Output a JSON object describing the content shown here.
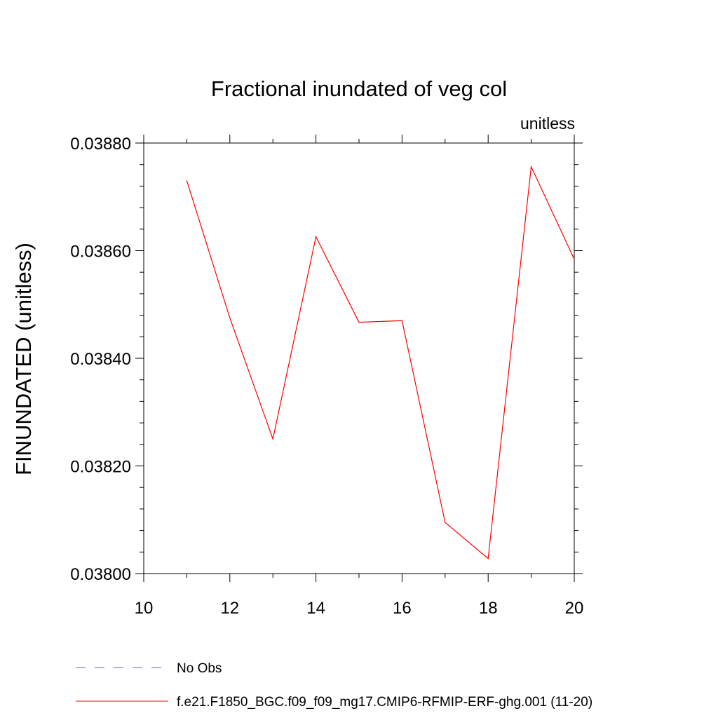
{
  "chart_data": {
    "type": "line",
    "title": "Fractional inundated of veg col",
    "units_label": "unitless",
    "ylabel": "FINUNDATED  (unitless)",
    "xlabel": "",
    "xlim": [
      10,
      20
    ],
    "ylim": [
      0.038,
      0.0388
    ],
    "x_ticks": [
      10,
      12,
      14,
      16,
      18,
      20
    ],
    "x_tick_labels": [
      "10",
      "12",
      "14",
      "16",
      "18",
      "20"
    ],
    "y_ticks": [
      0.038,
      0.0382,
      0.0384,
      0.0386,
      0.0388
    ],
    "y_tick_labels": [
      "0.03800",
      "0.03820",
      "0.03840",
      "0.03860",
      "0.03880"
    ],
    "grid": false,
    "legend_position": "bottom",
    "series": [
      {
        "name": "No Obs",
        "color": "#6a5acd",
        "style": "dashed",
        "x": [],
        "values": []
      },
      {
        "name": "f.e21.F1850_BGC.f09_f09_mg17.CMIP6-RFMIP-ERF-ghg.001 (11-20)",
        "color": "#ff0000",
        "style": "solid",
        "x": [
          11,
          12,
          13,
          14,
          15,
          16,
          17,
          18,
          19,
          20
        ],
        "values": [
          0.03873,
          0.038475,
          0.03825,
          0.038626,
          0.038467,
          0.03847,
          0.038095,
          0.038028,
          0.038756,
          0.038584
        ]
      }
    ]
  }
}
